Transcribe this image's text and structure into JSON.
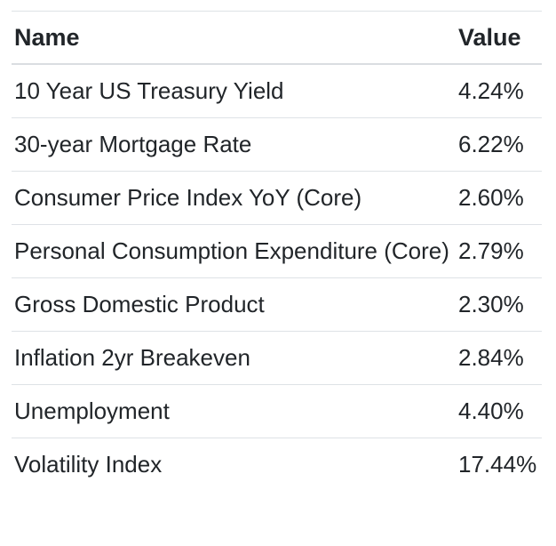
{
  "colors": {
    "background": "#ffffff",
    "text": "#212529",
    "border": "#dee2e6",
    "header_border": "#dadde1"
  },
  "table": {
    "columns": {
      "name_label": "Name",
      "value_label": "Value"
    },
    "rows": [
      {
        "name": "10 Year US Treasury Yield",
        "value": "4.24%"
      },
      {
        "name": "30-year Mortgage Rate",
        "value": "6.22%"
      },
      {
        "name": "Consumer Price Index YoY (Core)",
        "value": "2.60%"
      },
      {
        "name": "Personal Consumption Expenditure (Core)",
        "value": "2.79%"
      },
      {
        "name": "Gross Domestic Product",
        "value": "2.30%"
      },
      {
        "name": "Inflation 2yr Breakeven",
        "value": "2.84%"
      },
      {
        "name": "Unemployment",
        "value": "4.40%"
      },
      {
        "name": "Volatility Index",
        "value": "17.44%"
      }
    ]
  }
}
